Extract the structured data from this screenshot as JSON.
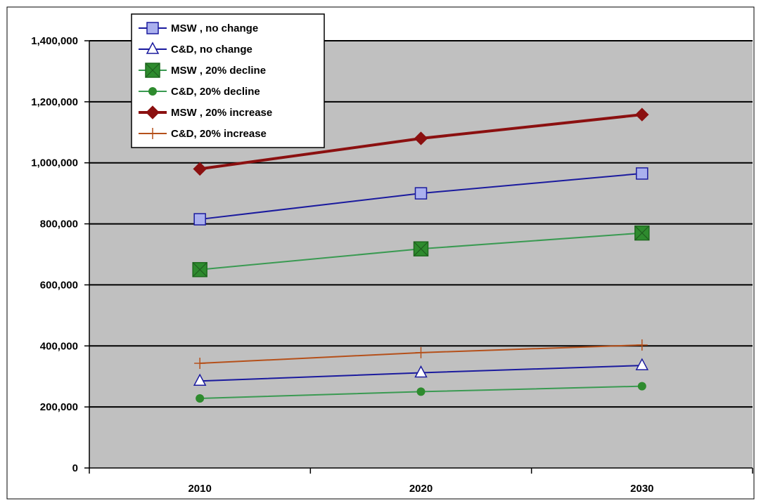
{
  "chart_data": {
    "type": "line",
    "title": "",
    "xlabel": "",
    "ylabel": "",
    "categories": [
      "2010",
      "2020",
      "2030"
    ],
    "ylim": [
      0,
      1400000
    ],
    "y_ticks": [
      "0",
      "200,000",
      "400,000",
      "600,000",
      "800,000",
      "1,000,000",
      "1,200,000",
      "1,400,000"
    ],
    "grid": "horizontal",
    "plot_background": "#c0c0c0",
    "legend_position": "top-left",
    "series": [
      {
        "name": "MSW , no change",
        "values": [
          815000,
          900000,
          965000
        ],
        "color": "#1a1a9e",
        "marker": "square",
        "marker_fill": "#aab0ee"
      },
      {
        "name": "C&D, no change",
        "values": [
          285000,
          312000,
          336000
        ],
        "color": "#1a1a9e",
        "marker": "triangle",
        "marker_fill": "#ffffff"
      },
      {
        "name": "MSW , 20% decline",
        "values": [
          650000,
          718000,
          770000
        ],
        "color": "#3a9a52",
        "marker": "square-x",
        "marker_fill": "#2e8b2e"
      },
      {
        "name": "C&D, 20% decline",
        "values": [
          228000,
          250000,
          268000
        ],
        "color": "#3a9a52",
        "marker": "circle",
        "marker_fill": "#2e8b2e"
      },
      {
        "name": "MSW , 20% increase",
        "values": [
          980000,
          1080000,
          1158000
        ],
        "color": "#8b1010",
        "marker": "diamond",
        "marker_fill": "#8b1010"
      },
      {
        "name": "C&D, 20% increase",
        "values": [
          343000,
          378000,
          403000
        ],
        "color": "#b5501a",
        "marker": "plus",
        "marker_fill": "#b5501a"
      }
    ]
  }
}
